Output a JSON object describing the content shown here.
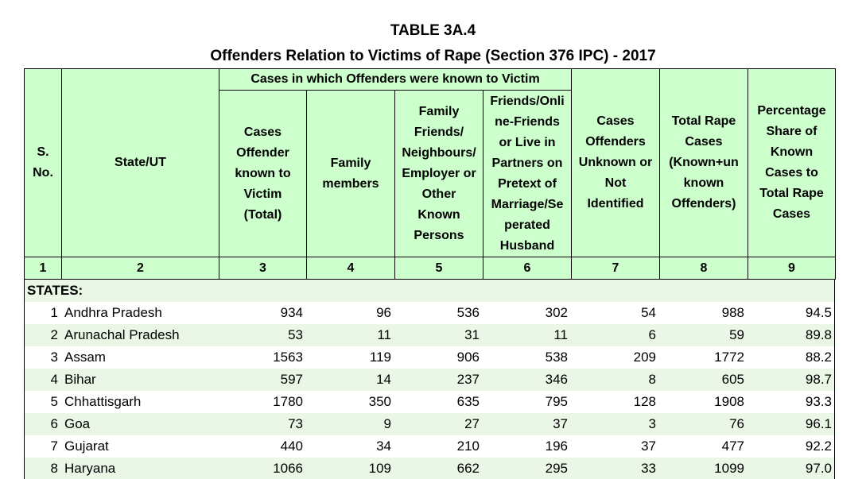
{
  "header": {
    "title": "TABLE 3A.4",
    "subtitle": "Offenders Relation to Victims of Rape (Section 376 IPC) - 2017"
  },
  "table": {
    "group_header": "Cases in which Offenders were known to Victim",
    "columns": [
      [
        "S.",
        "No."
      ],
      [
        "State/UT"
      ],
      [
        "Cases",
        "Offender",
        "known to",
        "Victim",
        "(Total)"
      ],
      [
        "Family",
        "members"
      ],
      [
        "Family",
        "Friends/",
        "Neighbours/",
        "Employer or",
        "Other",
        "Known",
        "Persons"
      ],
      [
        "Friends/Onli",
        "ne-Friends",
        "or Live in",
        "Partners on",
        "Pretext of",
        "Marriage/Se",
        "perated",
        "Husband"
      ],
      [
        "Cases",
        "Offenders",
        "Unknown or",
        "Not",
        "Identified"
      ],
      [
        "Total Rape",
        "Cases",
        "(Known+un",
        "known",
        "Offenders)"
      ],
      [
        "Percentage",
        "Share of",
        "Known",
        "Cases to",
        "Total Rape",
        "Cases"
      ]
    ],
    "column_numbers": [
      1,
      2,
      3,
      4,
      5,
      6,
      7,
      8,
      9
    ],
    "section": "STATES:",
    "rows": [
      [
        1,
        "Andhra Pradesh",
        934,
        96,
        536,
        302,
        54,
        988,
        "94.5"
      ],
      [
        2,
        "Arunachal Pradesh",
        53,
        11,
        31,
        11,
        6,
        59,
        "89.8"
      ],
      [
        3,
        "Assam",
        1563,
        119,
        906,
        538,
        209,
        1772,
        "88.2"
      ],
      [
        4,
        "Bihar",
        597,
        14,
        237,
        346,
        8,
        605,
        "98.7"
      ],
      [
        5,
        "Chhattisgarh",
        1780,
        350,
        635,
        795,
        128,
        1908,
        "93.3"
      ],
      [
        6,
        "Goa",
        73,
        9,
        27,
        37,
        3,
        76,
        "96.1"
      ],
      [
        7,
        "Gujarat",
        440,
        34,
        210,
        196,
        37,
        477,
        "92.2"
      ],
      [
        8,
        "Haryana",
        1066,
        109,
        662,
        295,
        33,
        1099,
        "97.0"
      ]
    ]
  }
}
